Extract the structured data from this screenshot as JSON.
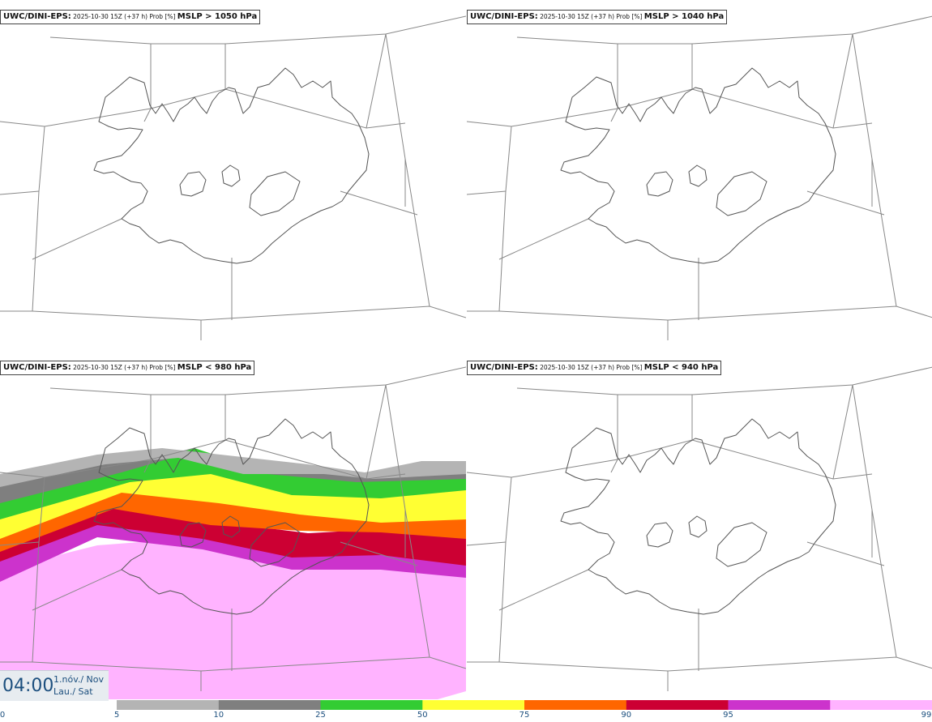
{
  "panels": [
    {
      "model": "UWC/DINI-EPS:",
      "run": " 2025-10-30 15Z (+37 h) Prob [%] ",
      "threshold": "MSLP > 1050 hPa"
    },
    {
      "model": "UWC/DINI-EPS:",
      "run": " 2025-10-30 15Z (+37 h) Prob [%] ",
      "threshold": "MSLP > 1040 hPa"
    },
    {
      "model": "UWC/DINI-EPS:",
      "run": " 2025-10-30 15Z (+37 h) Prob [%] ",
      "threshold": "MSLP < 980 hPa"
    },
    {
      "model": "UWC/DINI-EPS:",
      "run": " 2025-10-30 15Z (+37 h) Prob [%] ",
      "threshold": "MSLP < 940 hPa"
    }
  ],
  "time": {
    "hour": "04:00",
    "date": "1.nóv./ Nov",
    "weekday": "Lau./ Sat"
  },
  "colorbar": {
    "ticks": [
      "0",
      "5",
      "10",
      "25",
      "50",
      "75",
      "90",
      "95",
      "99"
    ],
    "colors": [
      "#b4b4b4",
      "#7f7f7f",
      "#33cc33",
      "#ffff33",
      "#ff6600",
      "#cc0033",
      "#cc33cc",
      "#ffb3ff"
    ]
  },
  "map": {
    "coastline_color": "#555555",
    "grid_color": "#888888"
  }
}
